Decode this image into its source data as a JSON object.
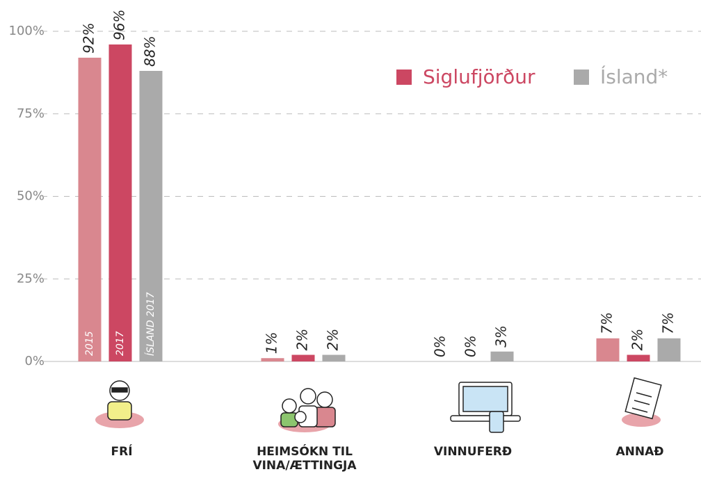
{
  "chart_data": {
    "type": "bar",
    "categories": [
      "FRÍ",
      "HEIMSÓKN TIL VINA/ÆTTINGJA",
      "VINNUFERÐ",
      "ANNAÐ"
    ],
    "series": [
      {
        "name": "2015",
        "color": "#d9878f",
        "values": [
          92,
          1,
          0,
          7
        ],
        "value_labels": [
          "92%",
          "1%",
          "0%",
          "7%"
        ]
      },
      {
        "name": "2017",
        "color": "#cc4762",
        "values": [
          96,
          2,
          0,
          2
        ],
        "value_labels": [
          "96%",
          "2%",
          "0%",
          "2%"
        ]
      },
      {
        "name": "ÍSLAND 2017",
        "color": "#aaaaaa",
        "values": [
          88,
          2,
          3,
          7
        ],
        "value_labels": [
          "88%",
          "2%",
          "3%",
          "7%"
        ]
      }
    ],
    "legend": [
      {
        "label": "Siglufjörður",
        "color": "#cc4762"
      },
      {
        "label": "Ísland*",
        "color": "#aaaaaa"
      }
    ],
    "ylim": [
      0,
      100
    ],
    "yticks": [
      {
        "value": 0,
        "label": "0%"
      },
      {
        "value": 25,
        "label": "25%"
      },
      {
        "value": 50,
        "label": "50%"
      },
      {
        "value": 75,
        "label": "75%"
      },
      {
        "value": 100,
        "label": "100%"
      }
    ],
    "grid": true
  }
}
